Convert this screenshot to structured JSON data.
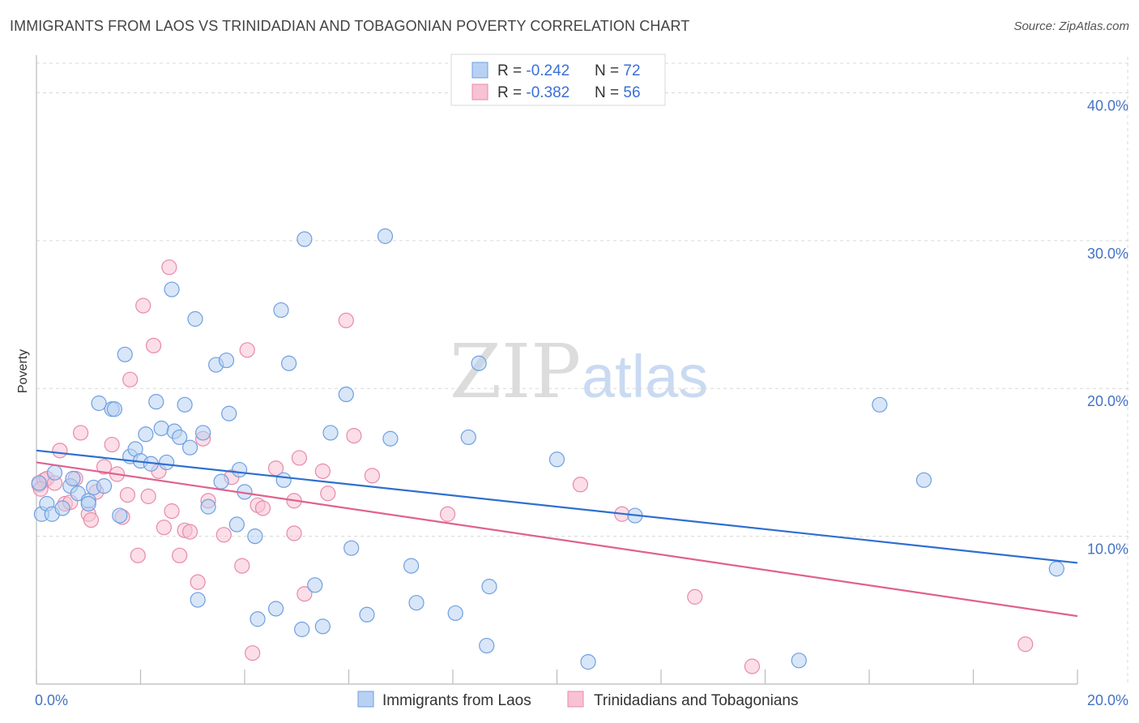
{
  "header": {
    "title": "IMMIGRANTS FROM LAOS VS TRINIDADIAN AND TOBAGONIAN POVERTY CORRELATION CHART",
    "source": "Source: ZipAtlas.com"
  },
  "watermark": {
    "zip": "ZIP",
    "atlas": "atlas"
  },
  "legend": {
    "row1": {
      "r_label": "R = ",
      "r_value": "-0.242",
      "n_label": "N = ",
      "n_value": "72"
    },
    "row2": {
      "r_label": "R = ",
      "r_value": "-0.382",
      "n_label": "N = ",
      "n_value": "56"
    }
  },
  "colors": {
    "blue_fill": "#b8d1f3",
    "blue_stroke": "#6f9fe0",
    "blue_line": "#2f6fd0",
    "pink_fill": "#f7c2d3",
    "pink_stroke": "#e88aa9",
    "pink_line": "#e0618f",
    "grid": "#d8d8d8",
    "tick": "#4472c4"
  },
  "chart_data": {
    "type": "scatter",
    "xlabel": "",
    "ylabel": "Poverty",
    "xlim": [
      0,
      20
    ],
    "ylim": [
      0,
      42
    ],
    "x_tick_labels": [
      "0.0%",
      "20.0%"
    ],
    "y_ticks": [
      10,
      20,
      30,
      40
    ],
    "y_tick_labels": [
      "10.0%",
      "20.0%",
      "30.0%",
      "40.0%"
    ],
    "grid": true,
    "legend_position": "top-center",
    "series": [
      {
        "name": "Immigrants from Laos",
        "trend": [
          [
            0,
            15.8
          ],
          [
            20,
            8.2
          ]
        ],
        "points": [
          [
            0.05,
            13.6
          ],
          [
            0.1,
            11.5
          ],
          [
            0.2,
            12.2
          ],
          [
            0.3,
            11.5
          ],
          [
            0.35,
            14.3
          ],
          [
            0.5,
            11.9
          ],
          [
            0.65,
            13.4
          ],
          [
            0.7,
            13.9
          ],
          [
            0.8,
            12.9
          ],
          [
            1.0,
            12.4
          ],
          [
            1.0,
            12.2
          ],
          [
            1.1,
            13.3
          ],
          [
            1.2,
            19.0
          ],
          [
            1.3,
            13.4
          ],
          [
            1.45,
            18.6
          ],
          [
            1.5,
            18.6
          ],
          [
            1.6,
            11.4
          ],
          [
            1.7,
            22.3
          ],
          [
            1.8,
            15.4
          ],
          [
            1.9,
            15.9
          ],
          [
            2.0,
            15.1
          ],
          [
            2.1,
            16.9
          ],
          [
            2.2,
            14.9
          ],
          [
            2.3,
            19.1
          ],
          [
            2.4,
            17.3
          ],
          [
            2.5,
            15.0
          ],
          [
            2.6,
            26.7
          ],
          [
            2.65,
            17.1
          ],
          [
            2.75,
            16.7
          ],
          [
            2.85,
            18.9
          ],
          [
            2.95,
            16.0
          ],
          [
            3.05,
            24.7
          ],
          [
            3.1,
            5.7
          ],
          [
            3.2,
            17.0
          ],
          [
            3.3,
            12.0
          ],
          [
            3.45,
            21.6
          ],
          [
            3.55,
            13.7
          ],
          [
            3.65,
            21.9
          ],
          [
            3.7,
            18.3
          ],
          [
            3.9,
            14.5
          ],
          [
            3.85,
            10.8
          ],
          [
            4.0,
            13.0
          ],
          [
            4.2,
            10.0
          ],
          [
            4.25,
            4.4
          ],
          [
            4.6,
            5.1
          ],
          [
            4.75,
            13.8
          ],
          [
            4.7,
            25.3
          ],
          [
            4.85,
            21.7
          ],
          [
            5.15,
            30.1
          ],
          [
            5.1,
            3.7
          ],
          [
            5.35,
            6.7
          ],
          [
            5.5,
            3.9
          ],
          [
            5.65,
            17.0
          ],
          [
            5.95,
            19.6
          ],
          [
            6.05,
            9.2
          ],
          [
            6.35,
            4.7
          ],
          [
            6.7,
            30.3
          ],
          [
            6.8,
            16.6
          ],
          [
            7.2,
            8.0
          ],
          [
            7.3,
            5.5
          ],
          [
            8.05,
            4.8
          ],
          [
            8.3,
            16.7
          ],
          [
            8.5,
            21.7
          ],
          [
            8.7,
            6.6
          ],
          [
            8.65,
            2.6
          ],
          [
            10.0,
            15.2
          ],
          [
            10.6,
            1.5
          ],
          [
            11.5,
            11.4
          ],
          [
            14.65,
            1.6
          ],
          [
            16.2,
            18.9
          ],
          [
            17.05,
            13.8
          ],
          [
            19.6,
            7.8
          ]
        ]
      },
      {
        "name": "Trinidadians and Tobagonians",
        "trend": [
          [
            0,
            15.0
          ],
          [
            20,
            4.6
          ]
        ],
        "points": [
          [
            0.05,
            13.5
          ],
          [
            0.15,
            13.8
          ],
          [
            0.2,
            13.9
          ],
          [
            0.35,
            13.6
          ],
          [
            0.45,
            15.8
          ],
          [
            0.55,
            12.2
          ],
          [
            0.65,
            12.3
          ],
          [
            0.75,
            13.9
          ],
          [
            0.85,
            17.0
          ],
          [
            1.0,
            11.5
          ],
          [
            1.05,
            11.1
          ],
          [
            1.15,
            13.0
          ],
          [
            1.3,
            14.7
          ],
          [
            1.45,
            16.2
          ],
          [
            1.55,
            14.2
          ],
          [
            1.65,
            11.3
          ],
          [
            1.75,
            12.8
          ],
          [
            1.8,
            20.6
          ],
          [
            1.95,
            8.7
          ],
          [
            2.05,
            25.6
          ],
          [
            2.15,
            12.7
          ],
          [
            2.25,
            22.9
          ],
          [
            2.35,
            14.4
          ],
          [
            2.45,
            10.6
          ],
          [
            2.55,
            28.2
          ],
          [
            2.6,
            11.7
          ],
          [
            2.75,
            8.7
          ],
          [
            2.85,
            10.4
          ],
          [
            2.95,
            10.3
          ],
          [
            3.1,
            6.9
          ],
          [
            3.2,
            16.6
          ],
          [
            3.3,
            12.4
          ],
          [
            3.6,
            10.1
          ],
          [
            3.75,
            14.0
          ],
          [
            3.95,
            8.0
          ],
          [
            4.05,
            22.6
          ],
          [
            4.15,
            2.1
          ],
          [
            4.25,
            12.1
          ],
          [
            4.35,
            11.9
          ],
          [
            4.6,
            14.6
          ],
          [
            4.95,
            12.4
          ],
          [
            4.95,
            10.2
          ],
          [
            5.05,
            15.3
          ],
          [
            5.15,
            6.1
          ],
          [
            5.5,
            14.4
          ],
          [
            5.6,
            12.9
          ],
          [
            5.95,
            24.6
          ],
          [
            6.1,
            16.8
          ],
          [
            6.45,
            14.1
          ],
          [
            7.9,
            11.5
          ],
          [
            10.45,
            13.5
          ],
          [
            11.25,
            11.5
          ],
          [
            12.65,
            5.9
          ],
          [
            13.75,
            1.2
          ],
          [
            19.0,
            2.7
          ],
          [
            0.08,
            13.2
          ]
        ]
      }
    ]
  },
  "bottom_legend": [
    "Immigrants from Laos",
    "Trinidadians and Tobagonians"
  ]
}
